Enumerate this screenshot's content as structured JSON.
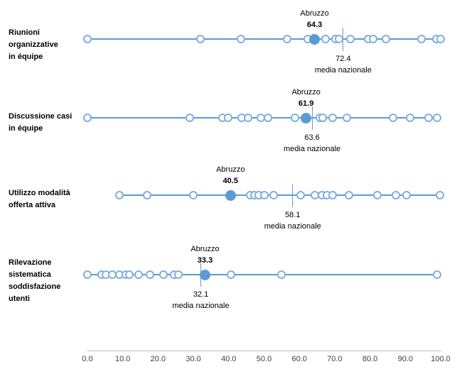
{
  "colors": {
    "line": "#5b9bd5",
    "open_circle_stroke": "#7fafdf",
    "filled_point": "#5b9bd5",
    "media_tick": "#5b9bd5",
    "axis_line": "#bfbfbf",
    "text": "#000000",
    "axis_text": "#404040"
  },
  "chart_data": {
    "type": "scatter",
    "title": "",
    "highlight_name": "Abruzzo",
    "mean_label": "media nazionale",
    "x_axis": {
      "min": 0,
      "max": 100,
      "tick_values": [
        0,
        10,
        20,
        30,
        40,
        50,
        60,
        70,
        80,
        90,
        100
      ],
      "tick_labels": [
        "0.0",
        "10.0",
        "20.0",
        "30.0",
        "40.0",
        "50.0",
        "60.0",
        "70.0",
        "80.0",
        "90.0",
        "100.0"
      ],
      "grid": false
    },
    "legend_position": "none",
    "rows": [
      {
        "label": "Riunioni organizzative in équipe",
        "label_lines": "Riunioni\norganizzative\nin équipe",
        "abruzzo": 64.3,
        "media_nazionale": 72.4,
        "points": [
          0,
          32,
          43.5,
          56.5,
          62.3,
          67.5,
          70.3,
          71.3,
          74.5,
          79.5,
          80.8,
          84.5,
          94.5,
          98.7,
          100
        ]
      },
      {
        "label": "Discussione casi in équipe",
        "label_lines": "Discussione casi\nin équipe",
        "abruzzo": 61.9,
        "media_nazionale": 63.6,
        "points": [
          0,
          29,
          38.2,
          39.9,
          43.7,
          45.5,
          49,
          51.2,
          58.7,
          65.8,
          66.6,
          69.5,
          73.5,
          86.5,
          91.3,
          96.6,
          99
        ]
      },
      {
        "label": "Utilizzo modalità offerta attiva",
        "label_lines": "Utilizzo modalità\nofferta attiva",
        "abruzzo": 40.5,
        "media_nazionale": 58.1,
        "points": [
          9,
          17,
          30,
          46,
          47.2,
          48.5,
          50,
          52.7,
          60.4,
          64.4,
          66.4,
          67.8,
          69.4,
          74,
          82,
          87.3,
          90.3,
          99.7
        ]
      },
      {
        "label": "Rilevazione sistematica soddisfazione utenti",
        "label_lines": "Rilevazione\nsistematica\nsoddisfazione\nutenti",
        "abruzzo": 33.3,
        "media_nazionale": 32.1,
        "points": [
          0,
          4,
          5.3,
          7,
          9,
          10.8,
          11.8,
          14.5,
          17.8,
          21.5,
          24.5,
          25.7,
          40.6,
          55,
          99
        ]
      }
    ]
  }
}
